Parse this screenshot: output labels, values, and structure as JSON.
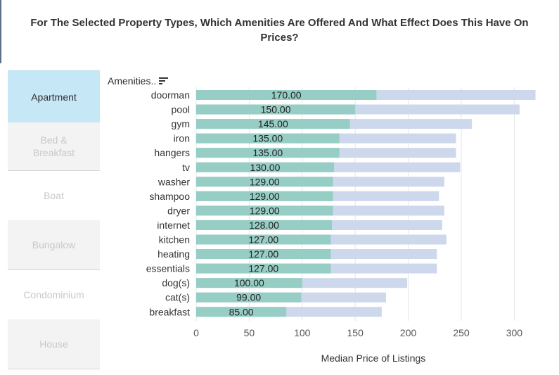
{
  "title": "For The Selected Property Types, Which Amenities Are Offered And What Effect Does This Have On Prices?",
  "sidebar": {
    "items": [
      {
        "label": "Apartment",
        "state": "active"
      },
      {
        "label": "Bed & Breakfast",
        "state": "inactive"
      },
      {
        "label": "Boat",
        "state": "inactive"
      },
      {
        "label": "Bungalow",
        "state": "inactive"
      },
      {
        "label": "Condominium",
        "state": "inactive"
      },
      {
        "label": "House",
        "state": "inactive"
      }
    ]
  },
  "colors": {
    "median_bar": "#96cdc4",
    "background_bar": "#cdd8ec",
    "active_tab": "#c5e7f6",
    "inactive_tab": "#f3f3f3",
    "inactive_text": "#c8c8c8"
  },
  "chart_data": {
    "type": "bar",
    "orientation": "horizontal",
    "title": "For The Selected Property Types, Which Amenities Are Offered And What Effect Does This Have On Prices?",
    "ylabel": "Amenities..",
    "xlabel": "Median Price of Listings",
    "xlim": [
      0,
      330
    ],
    "xticks": [
      0,
      50,
      100,
      150,
      200,
      250,
      300
    ],
    "grid": true,
    "categories": [
      "doorman",
      "pool",
      "gym",
      "iron",
      "hangers",
      "tv",
      "washer",
      "shampoo",
      "dryer",
      "internet",
      "kitchen",
      "heating",
      "essentials",
      "dog(s)",
      "cat(s)",
      "breakfast"
    ],
    "series": [
      {
        "name": "",
        "role": "background",
        "values": [
          320,
          305,
          260,
          245,
          245,
          249,
          234,
          229,
          234,
          232,
          236,
          227,
          227,
          199,
          179,
          175
        ]
      },
      {
        "name": "",
        "role": "median",
        "values": [
          170,
          150,
          145,
          135,
          135,
          130,
          129,
          129,
          129,
          128,
          127,
          127,
          127,
          100,
          99,
          85
        ],
        "labels": [
          "170.00",
          "150.00",
          "145.00",
          "135.00",
          "135.00",
          "130.00",
          "129.00",
          "129.00",
          "129.00",
          "128.00",
          "127.00",
          "127.00",
          "127.00",
          "100.00",
          "99.00",
          "85.00"
        ]
      }
    ]
  }
}
